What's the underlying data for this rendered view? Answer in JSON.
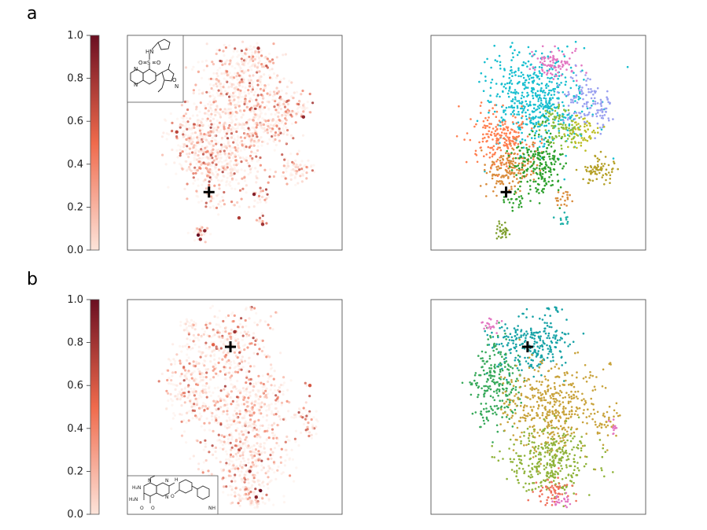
{
  "panel_labels": [
    "a",
    "b"
  ],
  "colors": {
    "heat_low": "#fde4da",
    "heat_mid": "#ef6a4c",
    "heat_high": "#6b0f22",
    "frame": "#555555",
    "cross": "#000000",
    "clusters_a": [
      "#e377c2",
      "#17becf",
      "#1f77b4",
      "#9aa0f0",
      "#ff7f50",
      "#d98b3a",
      "#2ca02c",
      "#8cbd3a",
      "#bcbd22",
      "#b5a028",
      "#20b0a8",
      "#7f9f2f"
    ],
    "clusters_b": [
      "#17a2a6",
      "#37a95a",
      "#c8a23a",
      "#8fb33a",
      "#ef6f5a",
      "#e377c2"
    ]
  },
  "chart_data": [
    {
      "type": "scatter",
      "panel": "a",
      "subplot": "attribution-heatmap",
      "colorbar": {
        "ticks": [
          "1.0",
          "0.8",
          "0.6",
          "0.4",
          "0.2",
          "0.0"
        ],
        "range": [
          0.0,
          1.0
        ],
        "colormap": "Reds"
      },
      "query_marker": {
        "symbol": "+",
        "x": 0.38,
        "y": 0.27
      },
      "inset": "molecule-structure-sulfonamide-cyclopentyl-quinoxaline-isoxazole",
      "high_points": [
        {
          "x": 0.33,
          "y": 0.07,
          "value": 1.0
        },
        {
          "x": 0.36,
          "y": 0.09,
          "value": 0.9
        },
        {
          "x": 0.34,
          "y": 0.05,
          "value": 0.85
        },
        {
          "x": 0.59,
          "y": 0.26,
          "value": 0.9
        },
        {
          "x": 0.52,
          "y": 0.15,
          "value": 0.75
        },
        {
          "x": 0.63,
          "y": 0.12,
          "value": 0.8
        },
        {
          "x": 0.82,
          "y": 0.62,
          "value": 0.85
        },
        {
          "x": 0.61,
          "y": 0.94,
          "value": 0.8
        },
        {
          "x": 0.23,
          "y": 0.55,
          "value": 0.7
        }
      ]
    },
    {
      "type": "scatter",
      "panel": "a",
      "subplot": "cluster-map",
      "query_marker": {
        "symbol": "+",
        "x": 0.35,
        "y": 0.27
      },
      "n_clusters": 12
    },
    {
      "type": "scatter",
      "panel": "b",
      "subplot": "attribution-heatmap",
      "colorbar": {
        "ticks": [
          "1.0",
          "0.8",
          "0.6",
          "0.4",
          "0.2",
          "0.0"
        ],
        "range": [
          0.0,
          1.0
        ],
        "colormap": "Reds"
      },
      "query_marker": {
        "symbol": "+",
        "x": 0.48,
        "y": 0.78
      },
      "inset": "molecule-structure-pyrimidopyrimidinone-piperidine",
      "high_points": [
        {
          "x": 0.62,
          "y": 0.11,
          "value": 1.0
        },
        {
          "x": 0.6,
          "y": 0.08,
          "value": 0.9
        },
        {
          "x": 0.57,
          "y": 0.2,
          "value": 0.8
        },
        {
          "x": 0.5,
          "y": 0.85,
          "value": 0.8
        },
        {
          "x": 0.85,
          "y": 0.6,
          "value": 0.6
        },
        {
          "x": 0.4,
          "y": 0.79,
          "value": 0.55
        }
      ]
    },
    {
      "type": "scatter",
      "panel": "b",
      "subplot": "cluster-map",
      "query_marker": {
        "symbol": "+",
        "x": 0.45,
        "y": 0.78
      },
      "n_clusters": 6
    }
  ]
}
